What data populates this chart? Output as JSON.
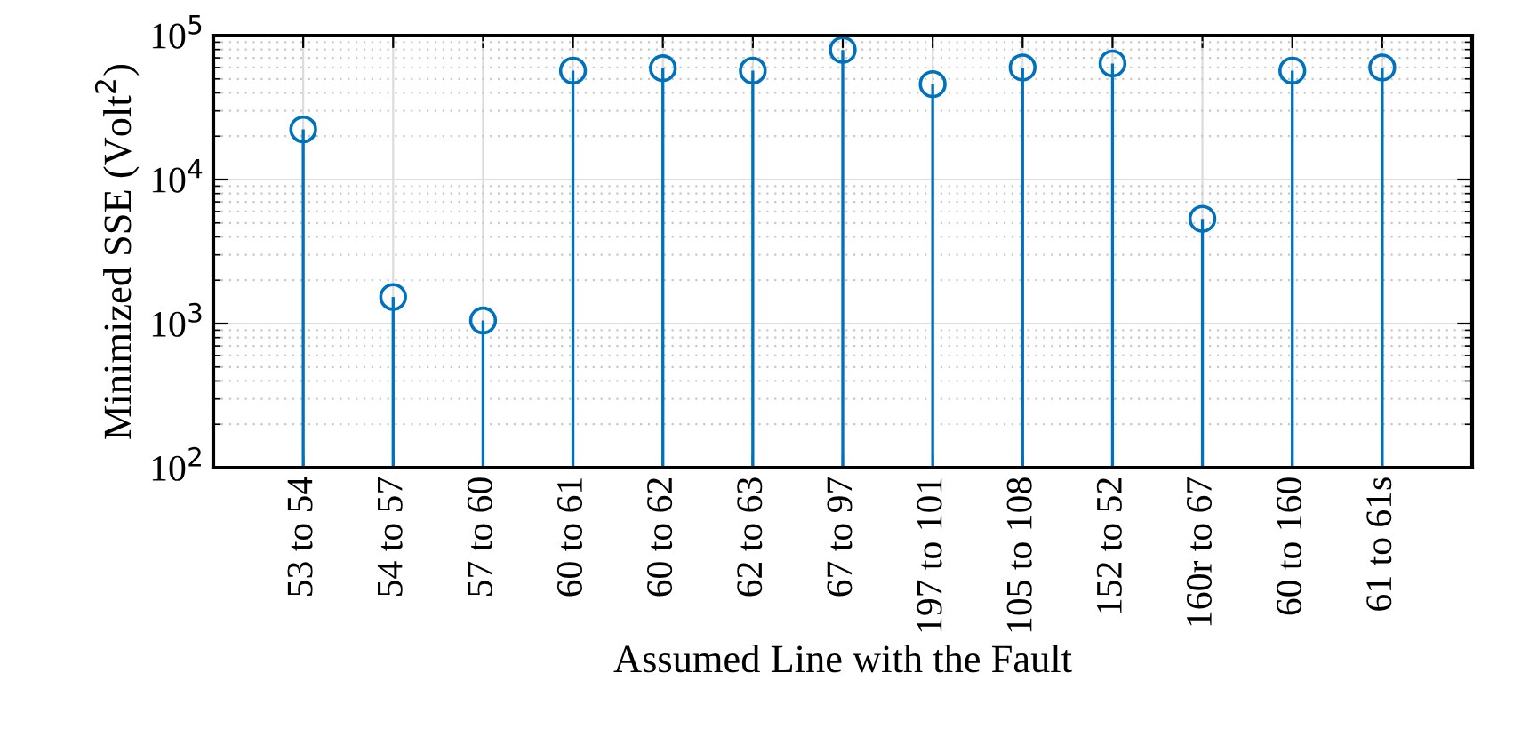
{
  "chart_data": {
    "type": "lollipop",
    "xlabel": "Assumed Line with the Fault",
    "ylabel": "Minimized SSE (Volt$^{2}$)",
    "categories": [
      "53 to 54",
      "54 to 57",
      "57 to 60",
      "60 to 61",
      "60 to 62",
      "62 to 63",
      "67 to 97",
      "197 to 101",
      "105 to 108",
      "152 to 52",
      "160r to 67",
      "60 to 160",
      "61 to 61s"
    ],
    "values": [
      22300,
      1530,
      1050,
      57100,
      59300,
      57100,
      79500,
      46000,
      60000,
      64000,
      5340,
      57100,
      60000
    ],
    "color": "#0072bd",
    "marker": "circle",
    "log": "y",
    "ylim": [
      100,
      100000
    ],
    "yticks": [
      {
        "value": 100,
        "label": "10$^{2}$"
      },
      {
        "value": 1000,
        "label": "10$^{3}$"
      },
      {
        "value": 10000,
        "label": "10$^{4}$"
      },
      {
        "value": 100000,
        "label": "10$^{5}$"
      }
    ],
    "grid": true
  }
}
